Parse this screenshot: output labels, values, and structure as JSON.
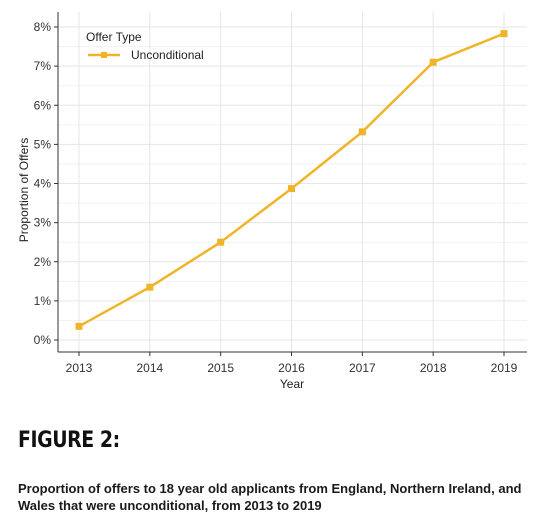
{
  "chart_data": {
    "type": "line",
    "x": [
      2013,
      2014,
      2015,
      2016,
      2017,
      2018,
      2019
    ],
    "series": [
      {
        "name": "Unconditional",
        "values": [
          0.35,
          1.35,
          2.5,
          3.87,
          5.32,
          7.1,
          7.83
        ]
      }
    ],
    "xlabel": "Year",
    "ylabel": "Proportion of Offers",
    "ylim": [
      0,
      8
    ],
    "y_ticks": [
      "0%",
      "1%",
      "2%",
      "3%",
      "4%",
      "5%",
      "6%",
      "7%",
      "8%"
    ],
    "x_ticks": [
      "2013",
      "2014",
      "2015",
      "2016",
      "2017",
      "2018",
      "2019"
    ],
    "legend_title": "Offer Type",
    "legend_position": "top-left",
    "grid": true,
    "colors": {
      "series": "#f0b429",
      "grid": "#e6e6e6",
      "axis": "#333333"
    }
  },
  "figure": {
    "heading": "FIGURE 2:",
    "caption": "Proportion of offers to 18 year old applicants from England, Northern Ireland, and Wales that were unconditional, from 2013 to 2019"
  }
}
